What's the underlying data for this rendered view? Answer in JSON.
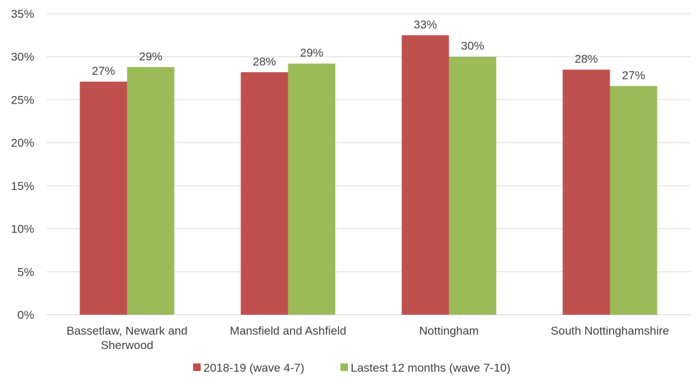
{
  "chart_data": {
    "type": "bar",
    "categories": [
      [
        "Bassetlaw, Newark and",
        "Sherwood"
      ],
      [
        "Mansfield and Ashfield"
      ],
      [
        "Nottingham"
      ],
      [
        "South Nottinghamshire"
      ]
    ],
    "series": [
      {
        "name": "2018-19 (wave 4-7)",
        "color": "#C0504D",
        "values": [
          27.1,
          28.2,
          32.5,
          28.5
        ],
        "labels": [
          "27%",
          "28%",
          "33%",
          "28%"
        ]
      },
      {
        "name": "Lastest 12 months (wave 7-10)",
        "color": "#9BBB59",
        "values": [
          28.8,
          29.2,
          30.0,
          26.6
        ],
        "labels": [
          "29%",
          "29%",
          "30%",
          "27%"
        ]
      }
    ],
    "y_ticks": [
      "0%",
      "5%",
      "10%",
      "15%",
      "20%",
      "25%",
      "30%",
      "35%"
    ],
    "y_tick_values": [
      0,
      5,
      10,
      15,
      20,
      25,
      30,
      35
    ],
    "ylim": [
      0,
      35
    ],
    "grid": true,
    "legend_position": "bottom",
    "title": "",
    "xlabel": "",
    "ylabel": ""
  }
}
